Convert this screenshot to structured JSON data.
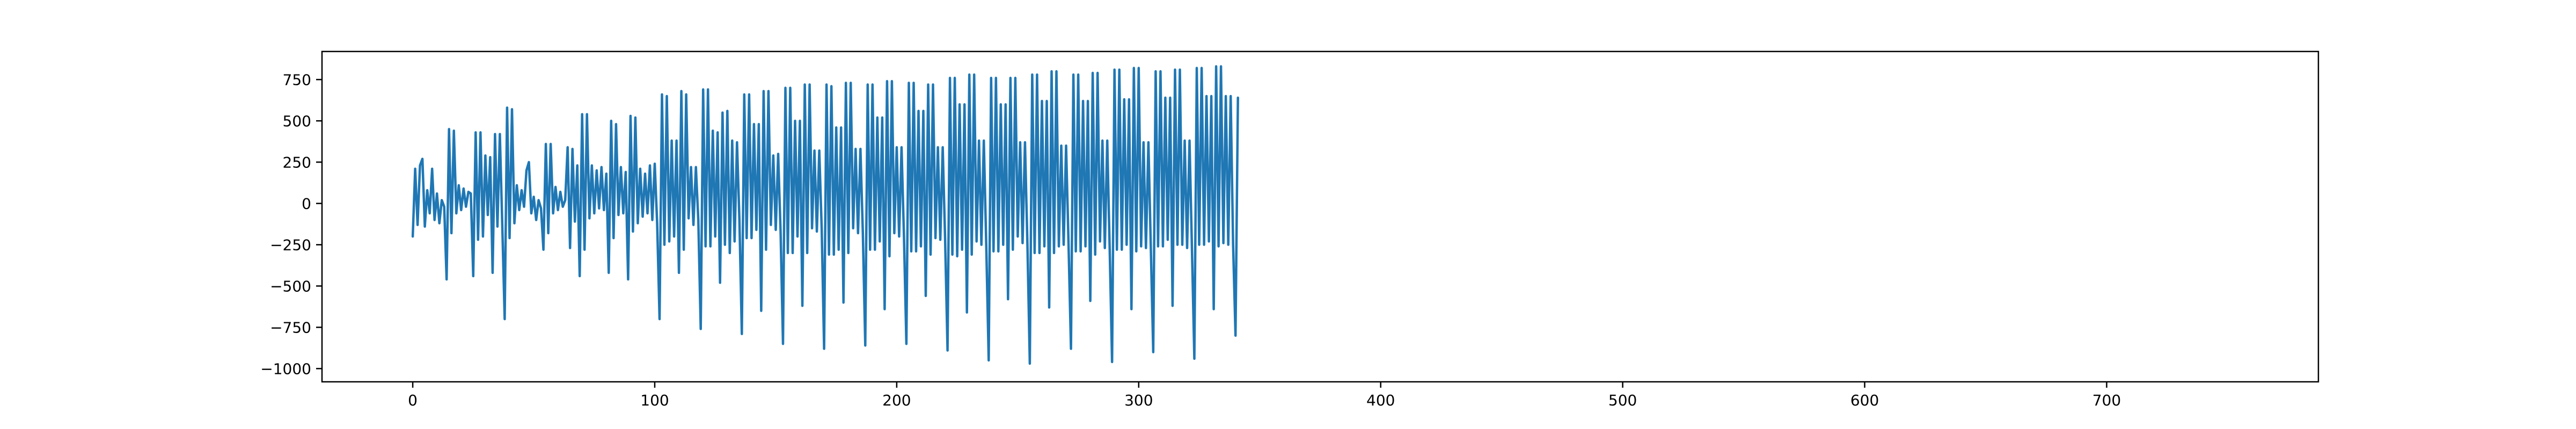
{
  "chart_data": {
    "type": "line",
    "title": "",
    "xlabel": "",
    "ylabel": "",
    "xlim": [
      -37.5,
      787.5
    ],
    "ylim": [
      -1080,
      920
    ],
    "xticks": [
      0,
      100,
      200,
      300,
      400,
      500,
      600,
      700
    ],
    "xtick_labels": [
      "0",
      "100",
      "200",
      "300",
      "400",
      "500",
      "600",
      "700"
    ],
    "yticks": [
      -1000,
      -750,
      -500,
      -250,
      0,
      250,
      500,
      750
    ],
    "ytick_labels": [
      "−1000",
      "−750",
      "−500",
      "−250",
      "0",
      "250",
      "500",
      "750"
    ],
    "grid": false,
    "legend": "none",
    "series": [
      {
        "color": "#1f77b4",
        "x_start": 0,
        "x_step": 1,
        "values": [
          -200,
          210,
          -130,
          230,
          270,
          -140,
          80,
          -60,
          210,
          -100,
          60,
          -120,
          20,
          -20,
          -460,
          450,
          -180,
          440,
          -60,
          110,
          -40,
          90,
          -20,
          70,
          60,
          -440,
          430,
          -220,
          430,
          -200,
          290,
          -70,
          280,
          -420,
          420,
          -140,
          420,
          -130,
          -700,
          580,
          -210,
          570,
          -120,
          110,
          -40,
          80,
          -20,
          200,
          250,
          -60,
          40,
          -100,
          20,
          -30,
          -280,
          360,
          -180,
          360,
          -60,
          100,
          -40,
          70,
          -20,
          20,
          340,
          -270,
          330,
          -110,
          230,
          -440,
          540,
          -280,
          540,
          -90,
          230,
          -60,
          200,
          -30,
          220,
          -40,
          180,
          -420,
          500,
          -210,
          480,
          -70,
          220,
          -60,
          190,
          -460,
          530,
          -170,
          520,
          -120,
          210,
          -80,
          180,
          -60,
          230,
          -100,
          240,
          -120,
          -700,
          660,
          -250,
          650,
          -230,
          380,
          -200,
          380,
          -420,
          680,
          -280,
          660,
          -90,
          220,
          -130,
          220,
          -100,
          -760,
          690,
          -260,
          690,
          -260,
          440,
          -200,
          430,
          -480,
          550,
          -250,
          560,
          -300,
          380,
          -230,
          370,
          -100,
          -790,
          660,
          -210,
          660,
          -210,
          480,
          -160,
          480,
          -650,
          680,
          -280,
          680,
          -130,
          290,
          -160,
          300,
          -170,
          -850,
          700,
          -300,
          700,
          -300,
          500,
          -200,
          500,
          -620,
          720,
          -300,
          720,
          -150,
          320,
          -170,
          320,
          -150,
          -880,
          720,
          -310,
          710,
          -310,
          460,
          -280,
          460,
          -600,
          730,
          -300,
          730,
          -150,
          330,
          -180,
          330,
          -180,
          -860,
          720,
          -280,
          720,
          -280,
          520,
          -230,
          520,
          -640,
          740,
          -320,
          740,
          -180,
          340,
          -200,
          340,
          -200,
          -850,
          730,
          -290,
          730,
          -290,
          560,
          -260,
          560,
          -560,
          720,
          -310,
          720,
          -210,
          340,
          -220,
          340,
          -220,
          -890,
          760,
          -310,
          760,
          -320,
          600,
          -280,
          600,
          -660,
          780,
          -310,
          780,
          -230,
          380,
          -250,
          380,
          -250,
          -950,
          760,
          -290,
          760,
          -290,
          600,
          -250,
          600,
          -580,
          760,
          -280,
          760,
          -200,
          370,
          -240,
          370,
          -240,
          -970,
          780,
          -300,
          780,
          -300,
          620,
          -260,
          620,
          -630,
          800,
          -300,
          800,
          -260,
          350,
          -250,
          350,
          -250,
          -880,
          780,
          -290,
          780,
          -290,
          620,
          -260,
          620,
          -590,
          790,
          -310,
          790,
          -230,
          380,
          -270,
          380,
          -270,
          -960,
          810,
          -280,
          810,
          -280,
          630,
          -250,
          630,
          -640,
          820,
          -290,
          820,
          -260,
          370,
          -270,
          370,
          -270,
          -900,
          800,
          -260,
          800,
          -260,
          640,
          -220,
          640,
          -620,
          810,
          -250,
          810,
          -250,
          380,
          -270,
          380,
          -270,
          -940,
          820,
          -250,
          820,
          -250,
          650,
          -230,
          650,
          -640,
          830,
          -260,
          830,
          -240,
          650,
          -250,
          650,
          -250,
          -800,
          640
        ]
      }
    ]
  }
}
